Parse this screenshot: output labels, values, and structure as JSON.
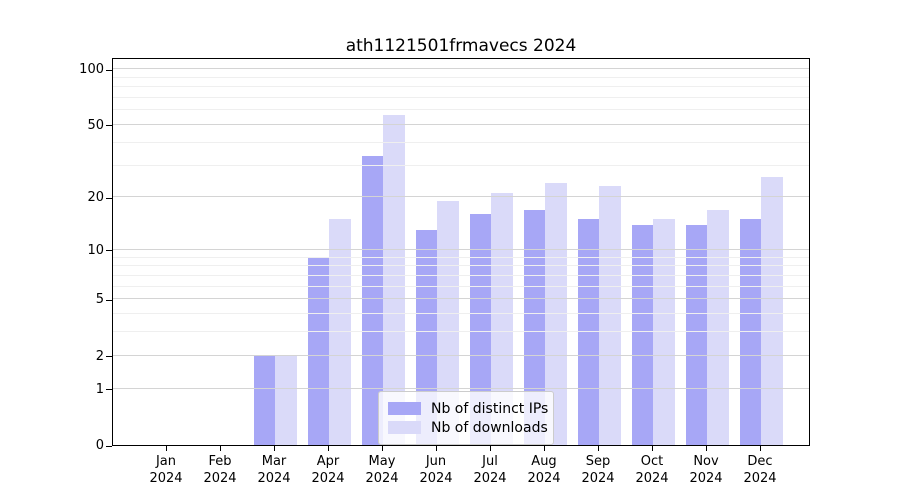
{
  "title": "ath1121501frmavecs 2024",
  "chart_data": {
    "type": "bar",
    "categories": [
      "Jan",
      "Feb",
      "Mar",
      "Apr",
      "May",
      "Jun",
      "Jul",
      "Aug",
      "Sep",
      "Oct",
      "Nov",
      "Dec"
    ],
    "year": "2024",
    "series": [
      {
        "name": "Nb of distinct IPs",
        "color": "#a7a7f6",
        "values": [
          0,
          0,
          2,
          9,
          34,
          13,
          16,
          17,
          15,
          14,
          14,
          15
        ]
      },
      {
        "name": "Nb of downloads",
        "color": "#dadaf9",
        "values": [
          0,
          0,
          2,
          15,
          57,
          19,
          21,
          24,
          23,
          15,
          17,
          26
        ]
      }
    ],
    "yscale": "log1p",
    "yticks": [
      0,
      1,
      2,
      5,
      10,
      20,
      50,
      100
    ],
    "minor_yticks": [
      3,
      4,
      6,
      7,
      8,
      9,
      30,
      40,
      60,
      70,
      80,
      90
    ],
    "ylim": [
      0,
      116.5
    ],
    "grid": true,
    "legend_position": "lower-center",
    "colors": {
      "major_grid": "#d4d4d4",
      "minor_grid": "#efefef",
      "spine": "#000000",
      "legend_border": "#cccccc"
    }
  }
}
